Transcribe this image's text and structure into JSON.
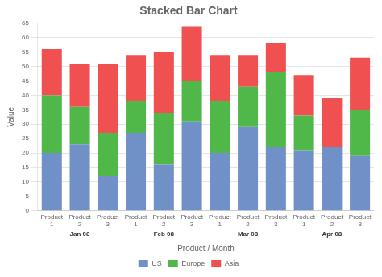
{
  "chart_data": {
    "type": "bar",
    "title": "Stacked Bar Chart",
    "xlabel": "Product / Month",
    "ylabel": "Value",
    "categories": [
      "Product\n1",
      "Product\n2",
      "Product\n3",
      "Product\n1",
      "Product\n2",
      "Product\n3",
      "Product\n1",
      "Product\n2",
      "Product\n3",
      "Product\n1",
      "Product\n2",
      "Product\n3"
    ],
    "groups": [
      "Jan 08",
      "Feb 08",
      "Mar 08",
      "Apr 08"
    ],
    "series": [
      {
        "name": "US",
        "color": "#7090c8",
        "values": [
          20,
          23,
          12,
          27,
          16,
          31,
          20,
          29,
          22,
          21,
          22,
          19
        ]
      },
      {
        "name": "Europe",
        "color": "#50b848",
        "values": [
          20,
          13,
          15,
          11,
          18,
          14,
          18,
          14,
          26,
          12,
          0,
          16
        ]
      },
      {
        "name": "Asia",
        "color": "#f05050",
        "values": [
          16,
          15,
          24,
          16,
          21,
          19,
          16,
          11,
          10,
          14,
          17,
          18
        ]
      }
    ],
    "stacked": true,
    "ylim": [
      0,
      65
    ],
    "yticks": [
      0,
      5,
      10,
      15,
      20,
      25,
      30,
      35,
      40,
      45,
      50,
      55,
      60,
      65
    ],
    "grid": true,
    "legend": "bottom"
  }
}
